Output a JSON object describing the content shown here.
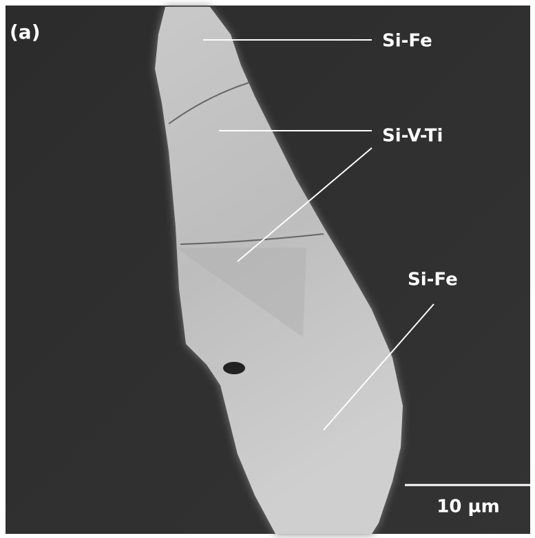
{
  "panel_label": "(a)",
  "labels": [
    "Si-Fe",
    "Si-V-Ti",
    "Si-Fe"
  ],
  "scale_bar": "10 µm"
}
